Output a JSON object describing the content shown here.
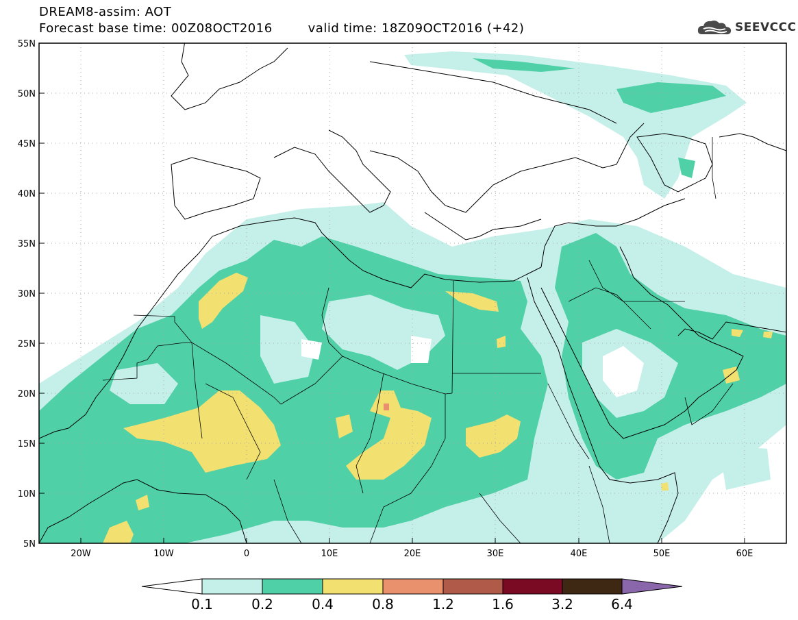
{
  "header": {
    "line1": "DREAM8-assim: AOT",
    "base_time": "Forecast base time: 00Z08OCT2016",
    "valid_time": "valid time: 18Z09OCT2016 (+42)"
  },
  "logo": {
    "text": "SEEVCCC",
    "icon": "cloud-icon"
  },
  "map": {
    "lat_labels": [
      "55N",
      "50N",
      "45N",
      "40N",
      "35N",
      "30N",
      "25N",
      "20N",
      "15N",
      "10N",
      "5N"
    ],
    "lon_labels": [
      "20W",
      "10W",
      "0",
      "10E",
      "20E",
      "30E",
      "40E",
      "50E",
      "60E"
    ],
    "lon_range": [
      -25,
      65
    ],
    "lat_range": [
      5,
      55
    ],
    "grid": "dotted"
  },
  "colorbar": {
    "labels": [
      "0.1",
      "0.2",
      "0.4",
      "0.8",
      "1.2",
      "1.6",
      "3.2",
      "6.4"
    ],
    "colors": [
      "#ffffff",
      "#c5efe9",
      "#4fd0a6",
      "#f2e070",
      "#e8916c",
      "#b05a4a",
      "#7a0a24",
      "#3e2814",
      "#8a66aa"
    ]
  }
}
